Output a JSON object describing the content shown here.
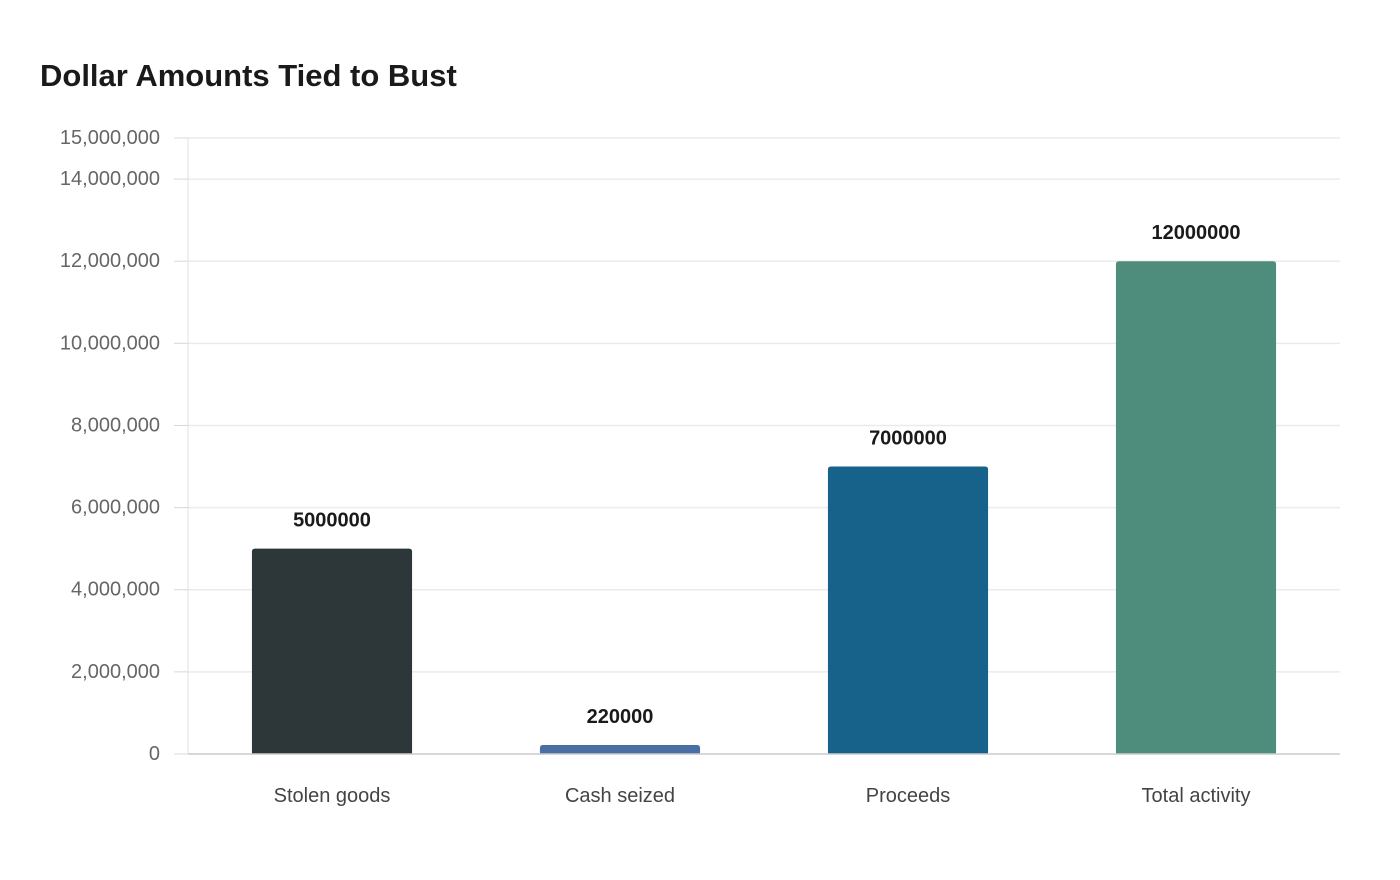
{
  "chart_data": {
    "type": "bar",
    "title": "Dollar Amounts Tied to Bust",
    "xlabel": "",
    "ylabel": "",
    "categories": [
      "Stolen goods",
      "Cash seized",
      "Proceeds",
      "Total activity"
    ],
    "values": [
      5000000,
      220000,
      7000000,
      12000000
    ],
    "data_labels": [
      "5000000",
      "220000",
      "7000000",
      "12000000"
    ],
    "colors": [
      "#2d3638",
      "#4a6fa5",
      "#17628a",
      "#4e8d7b"
    ],
    "ylim": [
      0,
      15000000
    ],
    "y_ticks": [
      0,
      2000000,
      4000000,
      6000000,
      8000000,
      10000000,
      12000000,
      14000000,
      15000000
    ],
    "y_tick_labels": [
      "0",
      "2,000,000",
      "4,000,000",
      "6,000,000",
      "8,000,000",
      "10,000,000",
      "12,000,000",
      "14,000,000",
      "15,000,000"
    ],
    "grid": true,
    "legend": "none"
  }
}
